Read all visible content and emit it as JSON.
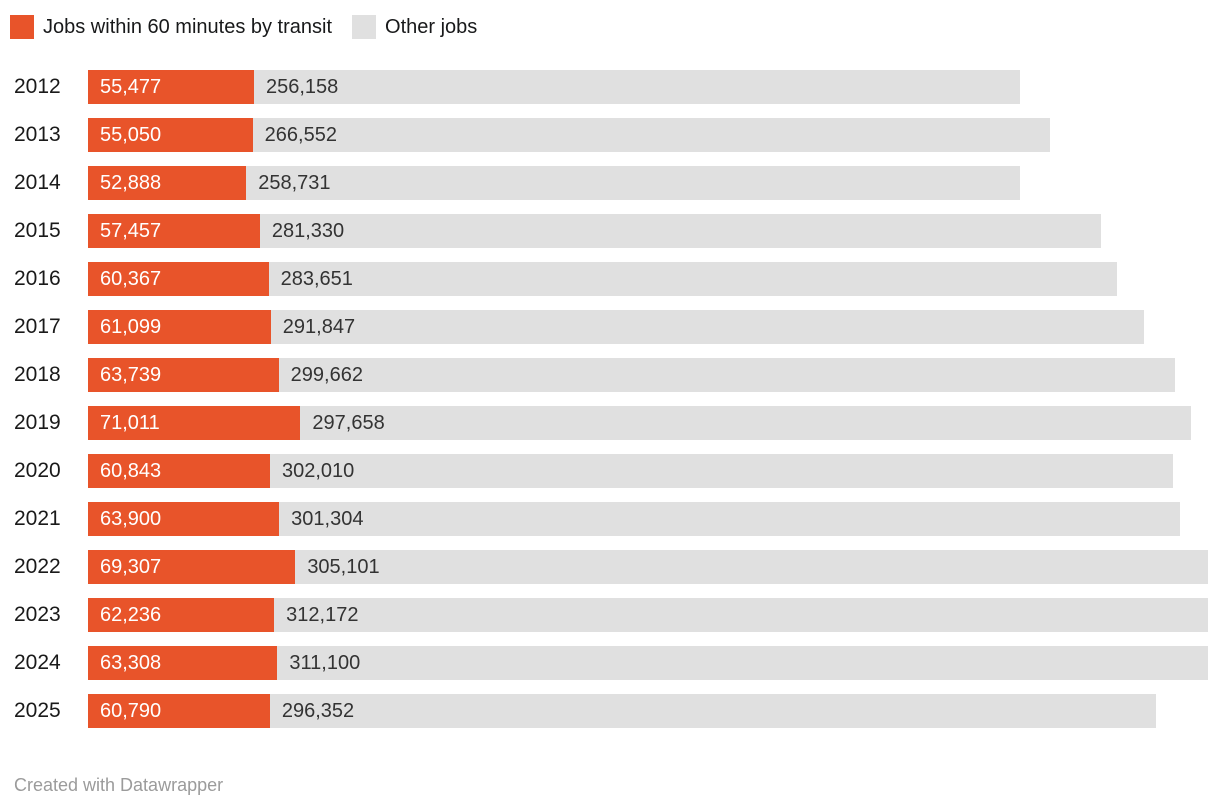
{
  "legend": {
    "transit_label": "Jobs within 60 minutes by transit",
    "other_label": "Other jobs"
  },
  "footer": {
    "credit": "Created with Datawrapper"
  },
  "colors": {
    "transit": "#e8542a",
    "other": "#e0e0e0",
    "transit_value_text": "#ffffff",
    "other_value_text": "#333333",
    "year_text": "#1a1a1a",
    "credit_text": "#9b9b9b"
  },
  "chart_data": {
    "type": "bar",
    "orientation": "horizontal",
    "stacked": true,
    "grid": false,
    "legend_position": "top",
    "value_format": "thousands-comma",
    "xlim": [
      0,
      374408
    ],
    "categories": [
      "2012",
      "2013",
      "2014",
      "2015",
      "2016",
      "2017",
      "2018",
      "2019",
      "2020",
      "2021",
      "2022",
      "2023",
      "2024",
      "2025"
    ],
    "series": [
      {
        "name": "Jobs within 60 minutes by transit",
        "color": "#e8542a",
        "values": [
          55477,
          55050,
          52888,
          57457,
          60367,
          61099,
          63739,
          71011,
          60843,
          63900,
          69307,
          62236,
          63308,
          60790
        ]
      },
      {
        "name": "Other jobs",
        "color": "#e0e0e0",
        "values": [
          256158,
          266552,
          258731,
          281330,
          283651,
          291847,
          299662,
          297658,
          302010,
          301304,
          305101,
          312172,
          311100,
          296352
        ]
      }
    ]
  }
}
